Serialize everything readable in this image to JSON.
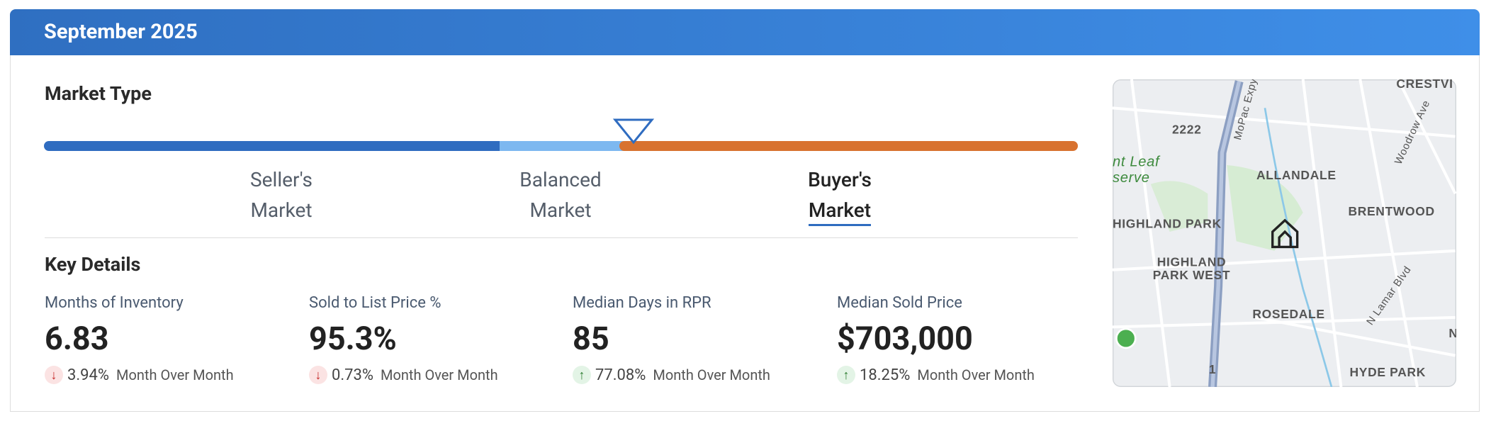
{
  "header": {
    "title": "September 2025"
  },
  "market_type": {
    "title": "Market Type",
    "position": "Balanced/Buyer's boundary",
    "segments": [
      {
        "line1": "Seller's",
        "line2": "Market"
      },
      {
        "line1": "Balanced",
        "line2": "Market"
      },
      {
        "line1": "Buyer's",
        "line2": "Market"
      }
    ]
  },
  "key_details": {
    "title": "Key Details",
    "metrics": [
      {
        "label": "Months of Inventory",
        "value": "6.83",
        "change": "3.94%",
        "note": "Month Over Month",
        "direction": "down"
      },
      {
        "label": "Sold to List Price %",
        "value": "95.3%",
        "change": "0.73%",
        "note": "Month Over Month",
        "direction": "down"
      },
      {
        "label": "Median Days in RPR",
        "value": "85",
        "change": "77.08%",
        "note": "Month Over Month",
        "direction": "up"
      },
      {
        "label": "Median Sold Price",
        "value": "$703,000",
        "change": "18.25%",
        "note": "Month Over Month",
        "direction": "up"
      }
    ]
  },
  "map": {
    "labels": [
      "CRESTVI",
      "2222",
      "MoPac Expy",
      "nt Leaf",
      "serve",
      "ALLANDALE",
      "Woodrow Ave",
      "BRENTWOOD",
      "HIGHLAND PARK",
      "HIGHLAND",
      "PARK WEST",
      "ROSEDALE",
      "N Lamar Blvd",
      "HYDE PARK",
      "1",
      "N"
    ]
  }
}
